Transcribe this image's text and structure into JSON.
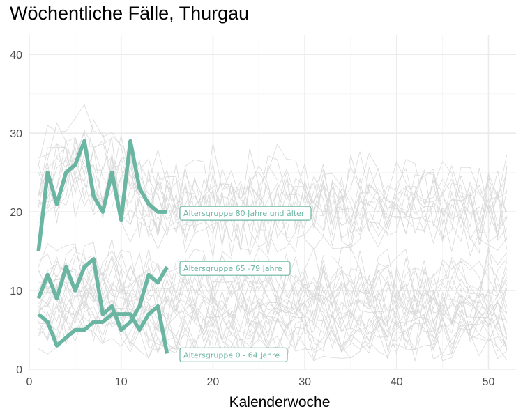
{
  "chart_data": {
    "type": "line",
    "title": "Wöchentliche Fälle, Thurgau",
    "xlabel": "Kalenderwoche",
    "ylabel": "",
    "xlim": [
      0,
      53
    ],
    "ylim": [
      0,
      42.5
    ],
    "x_ticks": [
      0,
      10,
      20,
      30,
      40,
      50
    ],
    "y_ticks": [
      0,
      10,
      20,
      30,
      40
    ],
    "grid": true,
    "colors": {
      "highlight": "#6bb5a3",
      "background_series": "#d9d9d9",
      "grid_major": "#ebebeb",
      "grid_minor": "#f5f5f5"
    },
    "x": [
      1,
      2,
      3,
      4,
      5,
      6,
      7,
      8,
      9,
      10,
      11,
      12,
      13,
      14,
      15
    ],
    "series": [
      {
        "name": "Altersgruppe 80 Jahre und älter",
        "values": [
          15,
          25,
          21,
          25,
          26,
          29,
          22,
          20,
          25,
          19,
          29,
          23,
          21,
          20,
          20
        ]
      },
      {
        "name": "Altersgruppe 65 -79 Jahre",
        "values": [
          9,
          12,
          9,
          13,
          10,
          13,
          14,
          7,
          8,
          5,
          6,
          8,
          12,
          11,
          13
        ]
      },
      {
        "name": "Altersgruppe 0 - 64 Jahre",
        "values": [
          7,
          6,
          3,
          4,
          5,
          5,
          6,
          6,
          7,
          7,
          7,
          5,
          7,
          8,
          2
        ]
      }
    ]
  }
}
